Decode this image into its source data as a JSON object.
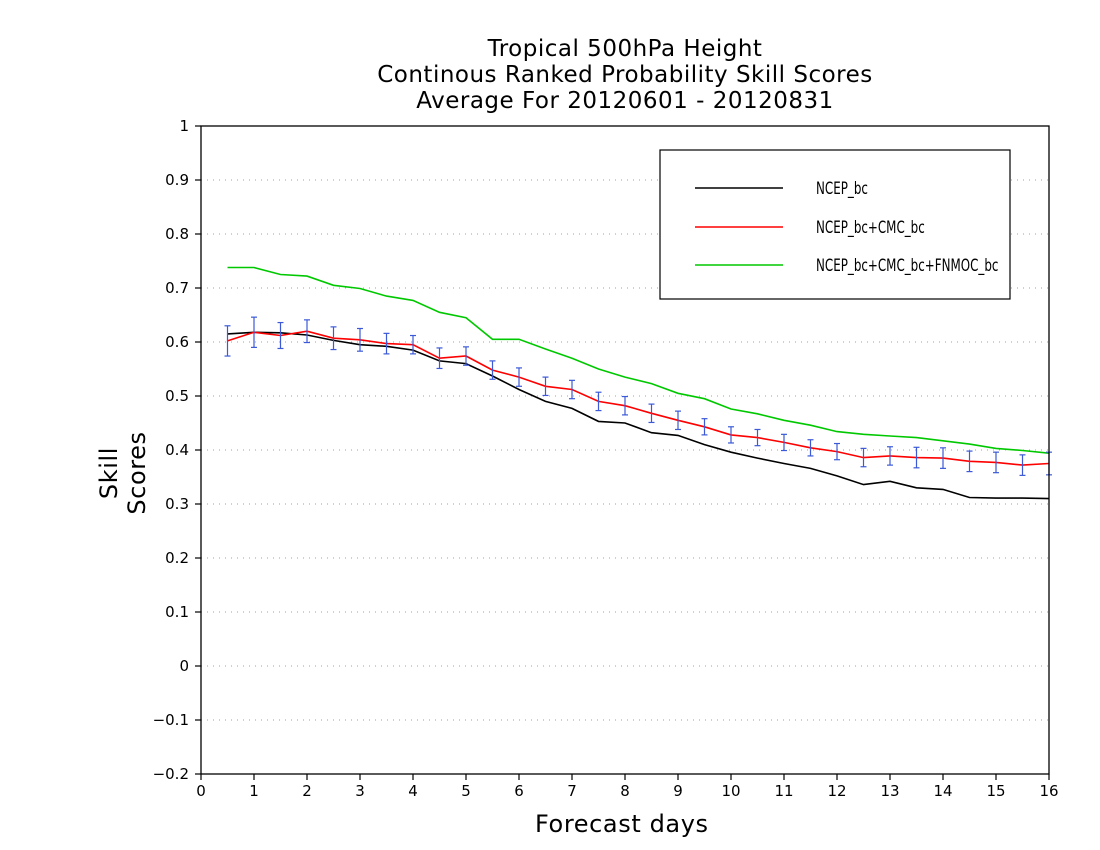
{
  "chart_data": {
    "type": "line",
    "title": [
      "Tropical 500hPa Height",
      "Continous Ranked Probability Skill Scores",
      "Average For 20120601 - 20120831"
    ],
    "xlabel": "Forecast days",
    "ylabel": "Skill Scores",
    "xlim": [
      0,
      16
    ],
    "ylim": [
      -0.2,
      1
    ],
    "xticks": [
      "0",
      "1",
      "2",
      "3",
      "4",
      "5",
      "6",
      "7",
      "8",
      "9",
      "10",
      "11",
      "12",
      "13",
      "14",
      "15",
      "16"
    ],
    "yticks": [
      "-0.2",
      "-0.1",
      "0",
      "0.1",
      "0.2",
      "0.3",
      "0.4",
      "0.5",
      "0.6",
      "0.7",
      "0.8",
      "0.9",
      "1"
    ],
    "grid": "horizontal dotted",
    "legend_position": "top-right",
    "x": [
      0.5,
      1,
      1.5,
      2,
      2.5,
      3,
      3.5,
      4,
      4.5,
      5,
      5.5,
      6,
      6.5,
      7,
      7.5,
      8,
      8.5,
      9,
      9.5,
      10,
      10.5,
      11,
      11.5,
      12,
      12.5,
      13,
      13.5,
      14,
      14.5,
      15,
      15.5,
      16
    ],
    "series": [
      {
        "name": "NCEP_bc",
        "color": "#000000",
        "values": [
          0.615,
          0.618,
          0.617,
          0.613,
          0.603,
          0.595,
          0.592,
          0.585,
          0.565,
          0.56,
          0.537,
          0.512,
          0.49,
          0.477,
          0.453,
          0.45,
          0.432,
          0.427,
          0.41,
          0.396,
          0.385,
          0.375,
          0.366,
          0.352,
          0.336,
          0.342,
          0.33,
          0.327,
          0.312,
          0.311,
          0.311,
          0.31
        ]
      },
      {
        "name": "NCEP_bc+CMC_bc",
        "color": "#ff0000",
        "values": [
          0.602,
          0.618,
          0.612,
          0.62,
          0.607,
          0.604,
          0.597,
          0.595,
          0.57,
          0.574,
          0.548,
          0.535,
          0.518,
          0.512,
          0.49,
          0.482,
          0.468,
          0.455,
          0.443,
          0.428,
          0.423,
          0.414,
          0.404,
          0.397,
          0.386,
          0.389,
          0.386,
          0.385,
          0.379,
          0.377,
          0.372,
          0.375
        ]
      },
      {
        "name": "NCEP_bc+CMC_bc+FNMOC_bc",
        "color": "#00c800",
        "values": [
          0.738,
          0.738,
          0.725,
          0.722,
          0.705,
          0.699,
          0.685,
          0.677,
          0.655,
          0.645,
          0.605,
          0.605,
          0.587,
          0.57,
          0.55,
          0.535,
          0.523,
          0.505,
          0.495,
          0.476,
          0.467,
          0.455,
          0.446,
          0.434,
          0.429,
          0.426,
          0.423,
          0.417,
          0.411,
          0.403,
          0.399,
          0.394
        ]
      }
    ],
    "error_bars": {
      "color": "#3c5ad7",
      "series": "NCEP_bc+CMC_bc",
      "halfwidth": [
        0.028,
        0.028,
        0.024,
        0.021,
        0.021,
        0.021,
        0.019,
        0.017,
        0.019,
        0.017,
        0.017,
        0.017,
        0.017,
        0.017,
        0.017,
        0.017,
        0.017,
        0.017,
        0.015,
        0.015,
        0.015,
        0.015,
        0.015,
        0.015,
        0.017,
        0.017,
        0.019,
        0.019,
        0.019,
        0.019,
        0.019,
        0.021
      ]
    }
  }
}
